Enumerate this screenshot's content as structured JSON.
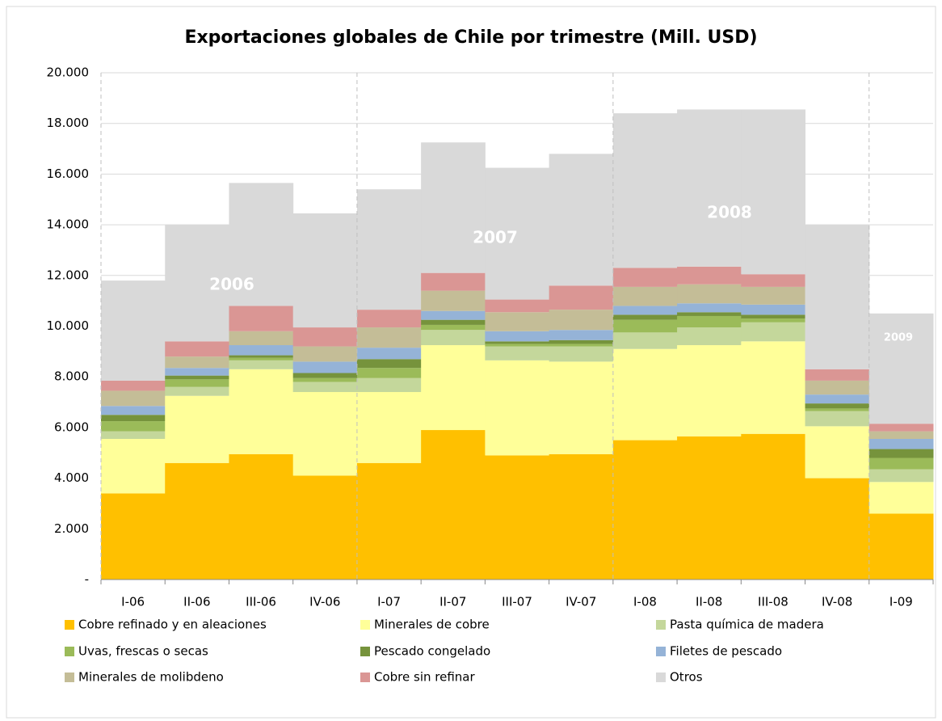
{
  "chart_data": {
    "type": "stacked_bar",
    "title": "Exportaciones globales de Chile por trimestre (Mill. USD)",
    "categories": [
      "I-06",
      "II-06",
      "III-06",
      "IV-06",
      "I-07",
      "II-07",
      "III-07",
      "IV-07",
      "I-08",
      "II-08",
      "III-08",
      "IV-08",
      "I-09"
    ],
    "series": [
      {
        "name": "Cobre refinado y en aleaciones",
        "color": "#ffc000",
        "values": [
          3400,
          4600,
          4950,
          4100,
          4600,
          5900,
          4900,
          4950,
          5500,
          5650,
          5750,
          4000,
          2600
        ]
      },
      {
        "name": "Minerales de cobre",
        "color": "#ffff99",
        "values": [
          2150,
          2650,
          3350,
          3300,
          2800,
          3350,
          3750,
          3650,
          3600,
          3600,
          3650,
          2050,
          1250
        ]
      },
      {
        "name": "Pasta química de madera",
        "color": "#c4d79b",
        "values": [
          300,
          350,
          350,
          400,
          550,
          600,
          550,
          600,
          650,
          700,
          750,
          600,
          500
        ]
      },
      {
        "name": "Uvas, frescas o secas",
        "color": "#9bbb59",
        "values": [
          400,
          300,
          100,
          150,
          400,
          200,
          100,
          100,
          500,
          450,
          150,
          100,
          450
        ]
      },
      {
        "name": "Pescado congelado",
        "color": "#76933c",
        "values": [
          250,
          150,
          100,
          200,
          350,
          200,
          100,
          150,
          200,
          150,
          150,
          200,
          350
        ]
      },
      {
        "name": "Filetes de pescado",
        "color": "#95b3d7",
        "values": [
          350,
          300,
          400,
          450,
          450,
          350,
          400,
          400,
          350,
          350,
          400,
          350,
          400
        ]
      },
      {
        "name": "Minerales de molibdeno",
        "color": "#c4bd97",
        "values": [
          600,
          450,
          550,
          600,
          800,
          800,
          750,
          800,
          750,
          750,
          700,
          550,
          300
        ]
      },
      {
        "name": "Cobre sin refinar",
        "color": "#da9694",
        "values": [
          400,
          600,
          1000,
          750,
          700,
          700,
          500,
          950,
          750,
          700,
          500,
          450,
          300
        ]
      },
      {
        "name": "Otros",
        "color": "#d9d9d9",
        "values": [
          3950,
          4600,
          4850,
          4500,
          4750,
          5150,
          5200,
          5200,
          6100,
          6200,
          6500,
          5700,
          4350
        ]
      }
    ],
    "annotations": [
      "2006",
      "2007",
      "2008",
      "2009"
    ],
    "ylim": [
      0,
      20000
    ],
    "yticks": [
      {
        "value": 0,
        "label": "-"
      },
      {
        "value": 2000,
        "label": "2.000"
      },
      {
        "value": 4000,
        "label": "4.000"
      },
      {
        "value": 6000,
        "label": "6.000"
      },
      {
        "value": 8000,
        "label": "8.000"
      },
      {
        "value": 10000,
        "label": "10.000"
      },
      {
        "value": 12000,
        "label": "12.000"
      },
      {
        "value": 14000,
        "label": "14.000"
      },
      {
        "value": 16000,
        "label": "16.000"
      },
      {
        "value": 18000,
        "label": "18.000"
      },
      {
        "value": 20000,
        "label": "20.000"
      }
    ],
    "grid": true
  }
}
